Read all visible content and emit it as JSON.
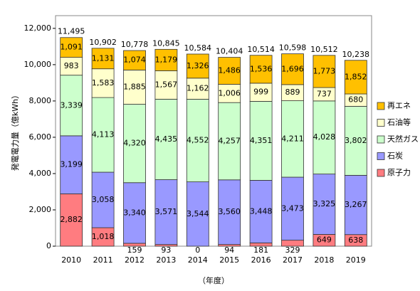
{
  "chart_data": {
    "type": "stacked_bar",
    "y_label": "発電電力量（億kWh）",
    "x_label": "（年度）",
    "categories": [
      "2010",
      "2011",
      "2012",
      "2013",
      "2014",
      "2015",
      "2016",
      "2017",
      "2018",
      "2019"
    ],
    "series": [
      {
        "name": "原子力",
        "color": "#ff7c80",
        "values": [
          2882,
          1018,
          159,
          93,
          0,
          94,
          181,
          329,
          649,
          638
        ],
        "value_labels": [
          "2,882",
          "1,018",
          "159",
          "93",
          "0",
          "94",
          "181",
          "329",
          "649",
          "638"
        ]
      },
      {
        "name": "石炭",
        "color": "#9999ff",
        "values": [
          3199,
          3058,
          3340,
          3571,
          3544,
          3560,
          3448,
          3473,
          3325,
          3267
        ],
        "value_labels": [
          "3,199",
          "3,058",
          "3,340",
          "3,571",
          "3,544",
          "3,560",
          "3,448",
          "3,473",
          "3,325",
          "3,267"
        ]
      },
      {
        "name": "天然ガス",
        "color": "#ccffcc",
        "values": [
          3339,
          4113,
          4320,
          4435,
          4552,
          4257,
          4351,
          4211,
          4028,
          3802
        ],
        "value_labels": [
          "3,339",
          "4,113",
          "4,320",
          "4,435",
          "4,552",
          "4,257",
          "4,351",
          "4,211",
          "4,028",
          "3,802"
        ]
      },
      {
        "name": "石油等",
        "color": "#ffffcc",
        "values": [
          983,
          1583,
          1885,
          1567,
          1162,
          1006,
          999,
          889,
          737,
          680
        ],
        "value_labels": [
          "983",
          "1,583",
          "1,885",
          "1,567",
          "1,162",
          "1,006",
          "999",
          "889",
          "737",
          "680"
        ]
      },
      {
        "name": "再エネ",
        "color": "#ffc000",
        "values": [
          1091,
          1131,
          1074,
          1179,
          1326,
          1486,
          1536,
          1696,
          1773,
          1852
        ],
        "value_labels": [
          "1,091",
          "1,131",
          "1,074",
          "1,179",
          "1,326",
          "1,486",
          "1,536",
          "1,696",
          "1,773",
          "1,852"
        ]
      }
    ],
    "totals": [
      11495,
      10902,
      10778,
      10845,
      10584,
      10404,
      10514,
      10598,
      10512,
      10238
    ],
    "total_labels": [
      "11,495",
      "10,902",
      "10,778",
      "10,845",
      "10,584",
      "10,404",
      "10,514",
      "10,598",
      "10,512",
      "10,238"
    ],
    "ylim": [
      0,
      12700
    ],
    "yticks": [
      0,
      {
        "value": 2000,
        "label": "2,000"
      },
      {
        "value": 4000,
        "label": "4,000"
      },
      {
        "value": 6000,
        "label": "6,000"
      },
      {
        "value": 8000,
        "label": "8,000"
      },
      {
        "value": 10000,
        "label": "10,000"
      },
      {
        "value": 12000,
        "label": "12,000"
      }
    ],
    "legend": "right"
  }
}
